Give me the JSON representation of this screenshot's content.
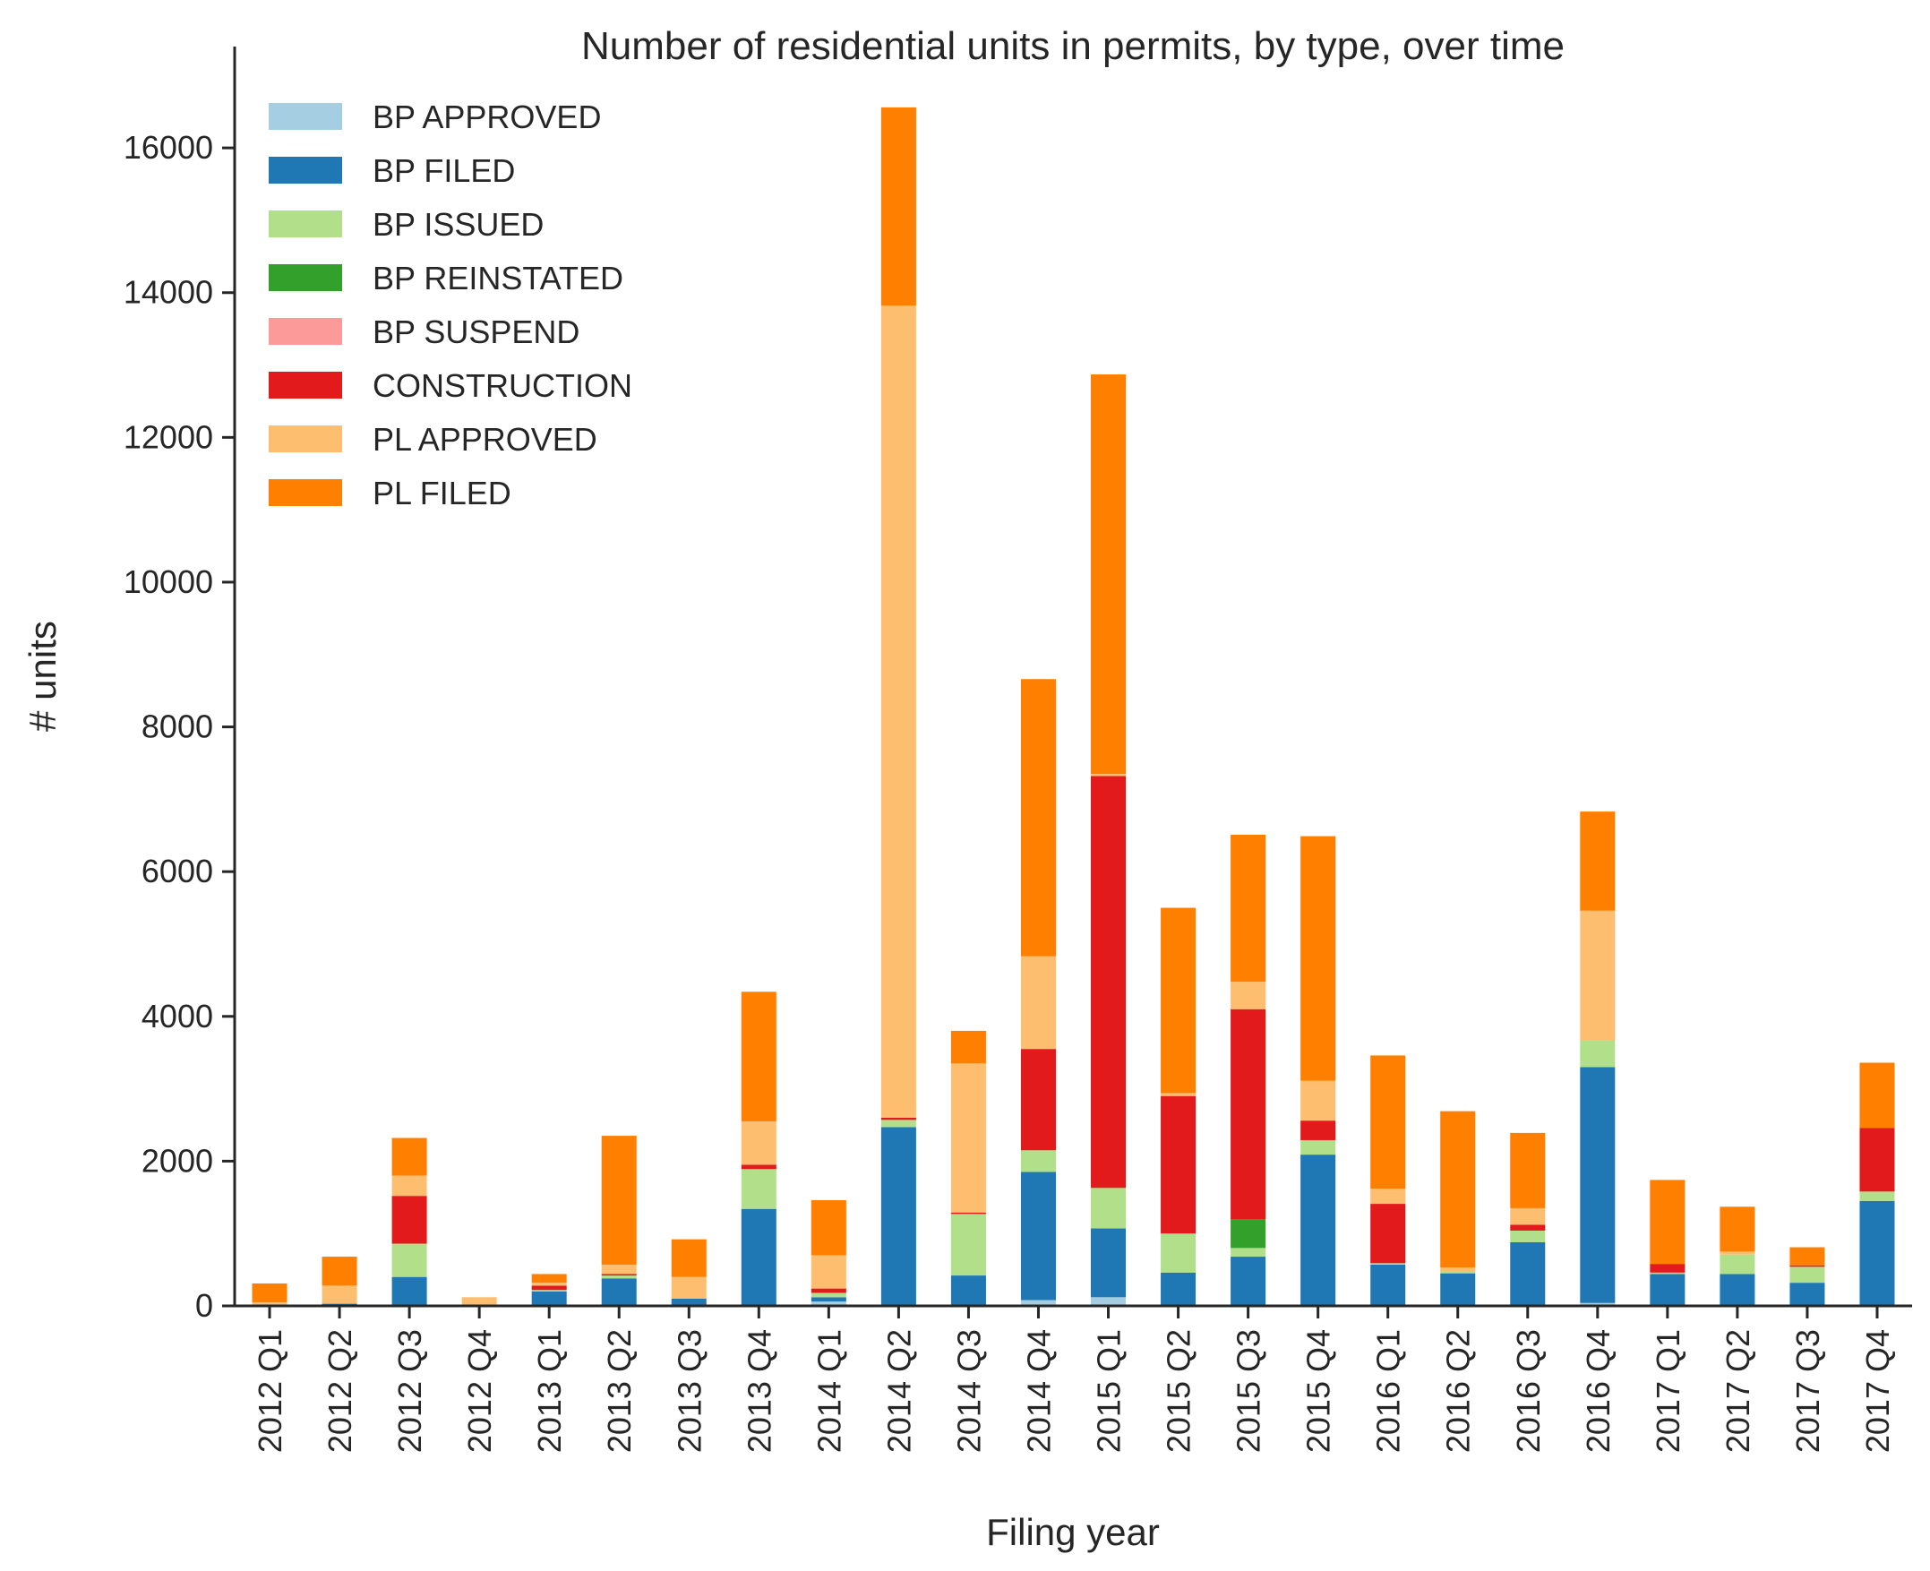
{
  "chart_data": {
    "type": "bar",
    "stacked": true,
    "title": "Number of residential units in permits, by type, over time",
    "xlabel": "Filing year",
    "ylabel": "# units",
    "ylim": [
      0,
      17400
    ],
    "yticks": [
      0,
      2000,
      4000,
      6000,
      8000,
      10000,
      12000,
      14000,
      16000
    ],
    "grid": false,
    "legend_position": "top-left",
    "categories": [
      "2012 Q1",
      "2012 Q2",
      "2012 Q3",
      "2012 Q4",
      "2013 Q1",
      "2013 Q2",
      "2013 Q3",
      "2013 Q4",
      "2014 Q1",
      "2014 Q2",
      "2014 Q3",
      "2014 Q4",
      "2015 Q1",
      "2015 Q2",
      "2015 Q3",
      "2015 Q4",
      "2016 Q1",
      "2016 Q2",
      "2016 Q3",
      "2016 Q4",
      "2017 Q1",
      "2017 Q2",
      "2017 Q3",
      "2017 Q4"
    ],
    "series": [
      {
        "name": "BP APPROVED",
        "color": "#a6cee3",
        "values": [
          0,
          0,
          0,
          0,
          0,
          0,
          0,
          0,
          60,
          0,
          0,
          80,
          120,
          0,
          0,
          0,
          0,
          0,
          0,
          40,
          0,
          0,
          0,
          0
        ]
      },
      {
        "name": "BP FILED",
        "color": "#1f78b4",
        "values": [
          20,
          30,
          400,
          0,
          200,
          380,
          100,
          1340,
          60,
          2470,
          420,
          1770,
          950,
          460,
          680,
          2090,
          570,
          450,
          880,
          3260,
          440,
          440,
          320,
          1450
        ]
      },
      {
        "name": "BP ISSUED",
        "color": "#b2df8a",
        "values": [
          0,
          0,
          460,
          0,
          20,
          40,
          0,
          550,
          60,
          100,
          850,
          300,
          560,
          540,
          120,
          200,
          20,
          20,
          160,
          370,
          20,
          270,
          220,
          130
        ]
      },
      {
        "name": "BP REINSTATED",
        "color": "#33a02c",
        "values": [
          0,
          0,
          0,
          0,
          0,
          0,
          0,
          0,
          0,
          0,
          0,
          0,
          0,
          0,
          400,
          0,
          0,
          0,
          0,
          0,
          0,
          0,
          0,
          0
        ]
      },
      {
        "name": "BP SUSPEND",
        "color": "#fb9a99",
        "values": [
          0,
          0,
          0,
          0,
          0,
          0,
          0,
          0,
          0,
          0,
          0,
          0,
          0,
          0,
          0,
          0,
          0,
          0,
          0,
          0,
          0,
          0,
          0,
          0
        ]
      },
      {
        "name": "CONSTRUCTION",
        "color": "#e31a1c",
        "values": [
          0,
          0,
          660,
          0,
          60,
          20,
          0,
          60,
          60,
          30,
          20,
          1400,
          5690,
          1900,
          2900,
          270,
          820,
          0,
          80,
          0,
          120,
          0,
          20,
          880
        ]
      },
      {
        "name": "PL APPROVED",
        "color": "#fdbf6f",
        "values": [
          30,
          250,
          280,
          120,
          40,
          130,
          300,
          600,
          460,
          11220,
          2060,
          1280,
          30,
          40,
          380,
          550,
          210,
          60,
          230,
          1790,
          0,
          40,
          0,
          0
        ]
      },
      {
        "name": "PL FILED",
        "color": "#ff7f00",
        "values": [
          260,
          400,
          520,
          0,
          120,
          1780,
          520,
          1790,
          760,
          2740,
          450,
          3830,
          5520,
          2560,
          2030,
          3380,
          1840,
          2160,
          1040,
          1370,
          1160,
          620,
          250,
          900
        ]
      }
    ]
  }
}
